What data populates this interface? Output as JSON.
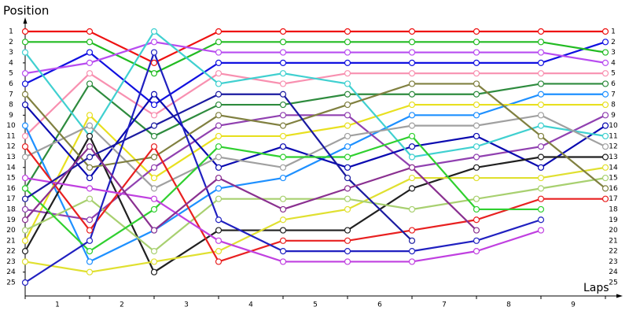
{
  "chart_data": {
    "type": "line",
    "y_label": "Position",
    "x_label": "Laps",
    "x": [
      0,
      1,
      2,
      3,
      4,
      5,
      6,
      7,
      8,
      9
    ],
    "xlim": [
      0,
      9.2
    ],
    "xticks": [
      {
        "value": 0.5,
        "label": "1"
      },
      {
        "value": 1.5,
        "label": "2"
      },
      {
        "value": 2.5,
        "label": "3"
      },
      {
        "value": 3.5,
        "label": "4"
      },
      {
        "value": 4.5,
        "label": "5"
      },
      {
        "value": 5.5,
        "label": "6"
      },
      {
        "value": 6.5,
        "label": "7"
      },
      {
        "value": 7.5,
        "label": "8"
      },
      {
        "value": 8.5,
        "label": "9"
      }
    ],
    "ylim": [
      1,
      25
    ],
    "y_inverted": true,
    "yticks": [
      1,
      2,
      3,
      4,
      5,
      6,
      7,
      8,
      9,
      10,
      11,
      12,
      13,
      14,
      15,
      16,
      17,
      18,
      19,
      20,
      21,
      22,
      23,
      24,
      25
    ],
    "series": [
      {
        "color": "#ee1111",
        "values": [
          1,
          1,
          4,
          1,
          1,
          1,
          1,
          1,
          1,
          1
        ]
      },
      {
        "color": "#1010e0",
        "values": [
          6,
          3,
          8,
          4,
          4,
          4,
          4,
          4,
          4,
          2
        ]
      },
      {
        "color": "#22bb22",
        "values": [
          2,
          2,
          5,
          2,
          2,
          2,
          2,
          2,
          2,
          3
        ]
      },
      {
        "color": "#b84cf0",
        "values": [
          5,
          4,
          2,
          3,
          3,
          3,
          3,
          3,
          3,
          4
        ]
      },
      {
        "color": "#f890b0",
        "values": [
          11,
          5,
          9,
          5,
          6,
          5,
          5,
          5,
          5,
          5
        ]
      },
      {
        "color": "#2e8b3e",
        "values": [
          16,
          6,
          11,
          8,
          8,
          7,
          7,
          7,
          6,
          6
        ]
      },
      {
        "color": "#1e90ff",
        "values": [
          10,
          23,
          20,
          16,
          15,
          12,
          9,
          9,
          7,
          7
        ]
      },
      {
        "color": "#e8e020",
        "values": [
          21,
          9,
          15,
          11,
          11,
          10,
          8,
          8,
          8,
          8
        ]
      },
      {
        "color": "#9040b0",
        "values": [
          18,
          19,
          14,
          10,
          9,
          9,
          14,
          13,
          12,
          9
        ]
      },
      {
        "color": "#0a0ab0",
        "values": [
          8,
          15,
          7,
          14,
          12,
          14,
          12,
          11,
          14,
          10
        ]
      },
      {
        "color": "#40d0d0",
        "values": [
          3,
          11,
          1,
          6,
          5,
          6,
          13,
          12,
          10,
          11
        ]
      },
      {
        "color": "#a0a0a0",
        "values": [
          13,
          10,
          16,
          13,
          14,
          11,
          10,
          10,
          9,
          12
        ]
      },
      {
        "color": "#202020",
        "values": [
          22,
          11,
          24,
          20,
          20,
          20,
          16,
          14,
          13,
          13
        ]
      },
      {
        "color": "#e0e030",
        "values": [
          23,
          24,
          23,
          22,
          19,
          18,
          15,
          15,
          15,
          14
        ]
      },
      {
        "color": "#a8d070",
        "values": [
          20,
          17,
          22,
          17,
          17,
          17,
          18,
          17,
          16,
          15
        ]
      },
      {
        "color": "#808040",
        "values": [
          7,
          14,
          13,
          9,
          10,
          8,
          6,
          6,
          11,
          16
        ]
      },
      {
        "color": "#e82020",
        "values": [
          12,
          20,
          12,
          23,
          21,
          21,
          20,
          19,
          17,
          17
        ]
      },
      {
        "color": "#30d030",
        "values": [
          16,
          22,
          18,
          12,
          13,
          13,
          11,
          18,
          18,
          null
        ]
      },
      {
        "color": "#2020c0",
        "values": [
          25,
          21,
          3,
          19,
          22,
          22,
          22,
          21,
          19,
          null
        ]
      },
      {
        "color": "#c040e0",
        "values": [
          15,
          16,
          17,
          21,
          23,
          23,
          23,
          22,
          20,
          null
        ]
      },
      {
        "color": "#1a1aa0",
        "values": [
          17,
          13,
          10,
          7,
          7,
          15,
          21,
          null,
          null,
          null
        ]
      },
      {
        "color": "#8a3090",
        "values": [
          19,
          12,
          20,
          15,
          18,
          16,
          14,
          20,
          null,
          null
        ]
      }
    ]
  }
}
